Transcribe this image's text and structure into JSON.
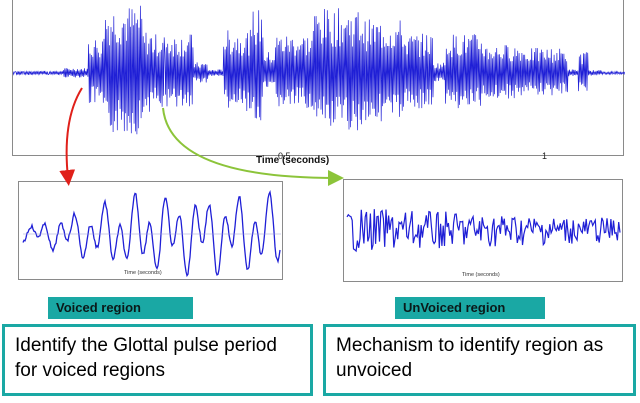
{
  "main_plot": {
    "xlabel": "Time (seconds)",
    "ticks": [
      "0.5",
      "1"
    ],
    "line_color": "#1f1fd6"
  },
  "voiced_plot": {
    "xlabel": "Time (seconds)"
  },
  "unvoiced_plot": {
    "xlabel": "Time (seconds)"
  },
  "labels": {
    "voiced": "Voiced region",
    "unvoiced": "UnVoiced region"
  },
  "descriptions": {
    "voiced": "Identify the Glottal pulse period for voiced regions",
    "unvoiced": "Mechanism to identify region as unvoiced"
  },
  "colors": {
    "waveform": "#1f1fd6",
    "badge": "#1aa8a4",
    "arrow_voiced": "#e0201a",
    "arrow_unvoiced": "#8cc43a"
  }
}
